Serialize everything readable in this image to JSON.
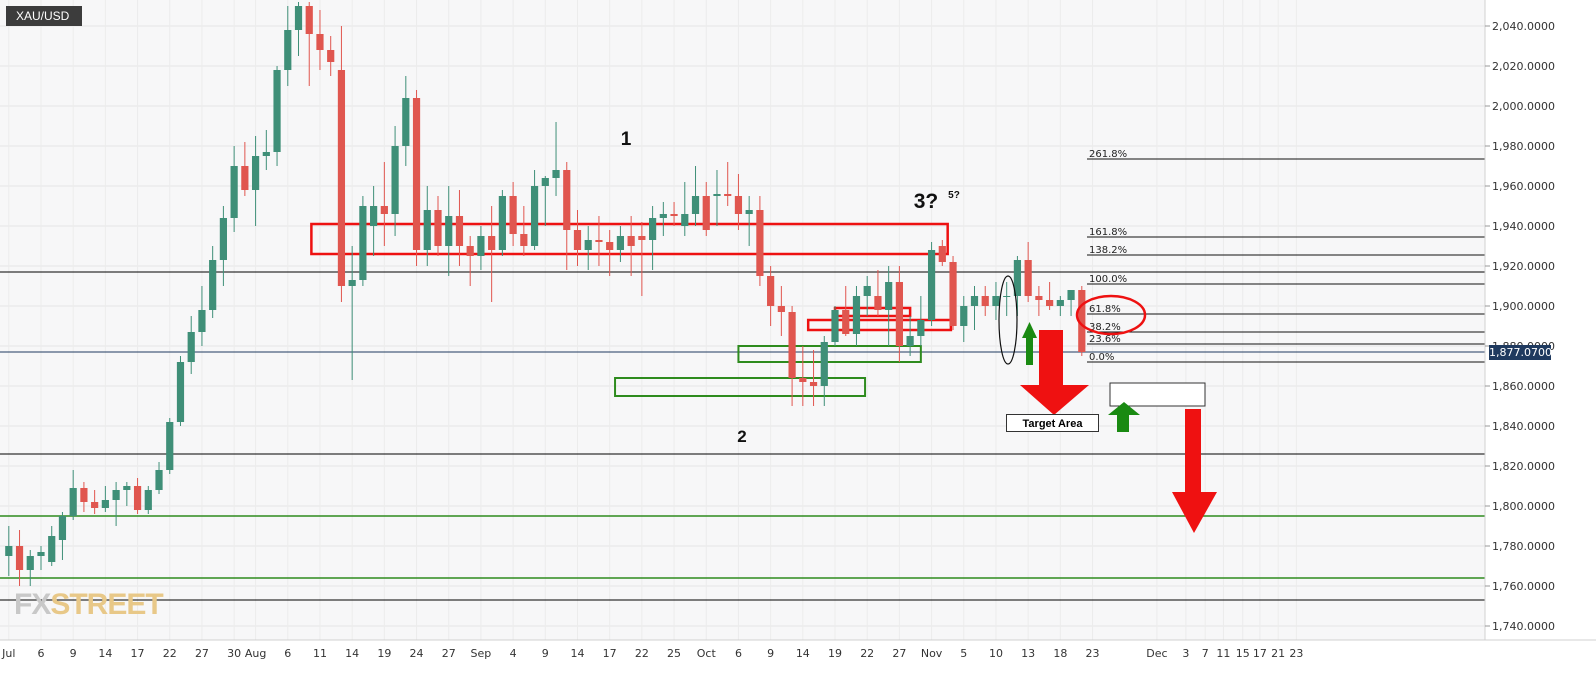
{
  "symbol": "XAU/USD",
  "current_price": "1,877.0700",
  "watermark": {
    "part1": "FX",
    "part2": "STREET"
  },
  "target_label": "Target Area",
  "wave_labels": {
    "w1": "1",
    "w2": "2",
    "w3": "3?",
    "w5": "5?"
  },
  "colors": {
    "up": "#3f8f78",
    "down": "#e0564f",
    "red_zone": "#ee1111",
    "green_zone": "#2e8b1e",
    "price_tag": "#1f3a5f"
  },
  "chart_data": {
    "type": "candlestick",
    "title": "",
    "xlabel": "",
    "ylabel": "",
    "ylim": [
      1732,
      2052
    ],
    "y_ticks": [
      "2,040.0000",
      "2,020.0000",
      "2,000.0000",
      "1,980.0000",
      "1,960.0000",
      "1,940.0000",
      "1,920.0000",
      "1,900.0000",
      "1,880.0000",
      "1,860.0000",
      "1,840.0000",
      "1,820.0000",
      "1,800.0000",
      "1,780.0000",
      "1,760.0000",
      "1,740.0000"
    ],
    "y_tick_values": [
      2040,
      2020,
      2000,
      1980,
      1960,
      1940,
      1920,
      1900,
      1880,
      1860,
      1840,
      1820,
      1800,
      1780,
      1760,
      1740
    ],
    "x_ticks": [
      {
        "label": "Jul",
        "i": 0
      },
      {
        "label": "6",
        "i": 3
      },
      {
        "label": "9",
        "i": 6
      },
      {
        "label": "14",
        "i": 9
      },
      {
        "label": "17",
        "i": 12
      },
      {
        "label": "22",
        "i": 15
      },
      {
        "label": "27",
        "i": 18
      },
      {
        "label": "30",
        "i": 21
      },
      {
        "label": "Aug",
        "i": 23
      },
      {
        "label": "6",
        "i": 26
      },
      {
        "label": "11",
        "i": 29
      },
      {
        "label": "14",
        "i": 32
      },
      {
        "label": "19",
        "i": 35
      },
      {
        "label": "24",
        "i": 38
      },
      {
        "label": "27",
        "i": 41
      },
      {
        "label": "Sep",
        "i": 44
      },
      {
        "label": "4",
        "i": 47
      },
      {
        "label": "9",
        "i": 50
      },
      {
        "label": "14",
        "i": 53
      },
      {
        "label": "17",
        "i": 56
      },
      {
        "label": "22",
        "i": 59
      },
      {
        "label": "25",
        "i": 62
      },
      {
        "label": "Oct",
        "i": 65
      },
      {
        "label": "6",
        "i": 68
      },
      {
        "label": "9",
        "i": 71
      },
      {
        "label": "14",
        "i": 74
      },
      {
        "label": "19",
        "i": 77
      },
      {
        "label": "22",
        "i": 80
      },
      {
        "label": "27",
        "i": 83
      },
      {
        "label": "Nov",
        "i": 86
      },
      {
        "label": "5",
        "i": 89
      },
      {
        "label": "10",
        "i": 92
      },
      {
        "label": "13",
        "i": 95
      },
      {
        "label": "18",
        "i": 98
      },
      {
        "label": "23",
        "i": 101
      },
      {
        "label": "Dec",
        "i": 107
      },
      {
        "label": "3",
        "i": 109.7
      },
      {
        "label": "7",
        "i": 111.5
      },
      {
        "label": "11",
        "i": 113.2
      },
      {
        "label": "15",
        "i": 115
      },
      {
        "label": "17",
        "i": 116.6
      },
      {
        "label": "21",
        "i": 118.3
      },
      {
        "label": "23",
        "i": 120
      }
    ],
    "candles": [
      {
        "o": 1775,
        "h": 1790,
        "l": 1765,
        "c": 1780
      },
      {
        "o": 1780,
        "h": 1788,
        "l": 1760,
        "c": 1768
      },
      {
        "o": 1768,
        "h": 1778,
        "l": 1760,
        "c": 1775
      },
      {
        "o": 1775,
        "h": 1780,
        "l": 1768,
        "c": 1777
      },
      {
        "o": 1772,
        "h": 1790,
        "l": 1770,
        "c": 1785
      },
      {
        "o": 1783,
        "h": 1797,
        "l": 1773,
        "c": 1795
      },
      {
        "o": 1795,
        "h": 1818,
        "l": 1793,
        "c": 1809
      },
      {
        "o": 1809,
        "h": 1812,
        "l": 1797,
        "c": 1802
      },
      {
        "o": 1802,
        "h": 1808,
        "l": 1796,
        "c": 1799
      },
      {
        "o": 1799,
        "h": 1810,
        "l": 1797,
        "c": 1803
      },
      {
        "o": 1803,
        "h": 1812,
        "l": 1790,
        "c": 1808
      },
      {
        "o": 1808,
        "h": 1812,
        "l": 1800,
        "c": 1810
      },
      {
        "o": 1810,
        "h": 1814,
        "l": 1796,
        "c": 1798
      },
      {
        "o": 1798,
        "h": 1810,
        "l": 1796,
        "c": 1808
      },
      {
        "o": 1808,
        "h": 1822,
        "l": 1806,
        "c": 1818
      },
      {
        "o": 1818,
        "h": 1844,
        "l": 1816,
        "c": 1842
      },
      {
        "o": 1842,
        "h": 1875,
        "l": 1840,
        "c": 1872
      },
      {
        "o": 1872,
        "h": 1895,
        "l": 1866,
        "c": 1887
      },
      {
        "o": 1887,
        "h": 1910,
        "l": 1880,
        "c": 1898
      },
      {
        "o": 1898,
        "h": 1930,
        "l": 1894,
        "c": 1923
      },
      {
        "o": 1923,
        "h": 1950,
        "l": 1910,
        "c": 1944
      },
      {
        "o": 1944,
        "h": 1980,
        "l": 1937,
        "c": 1970
      },
      {
        "o": 1970,
        "h": 1982,
        "l": 1955,
        "c": 1958
      },
      {
        "o": 1958,
        "h": 1985,
        "l": 1940,
        "c": 1975
      },
      {
        "o": 1975,
        "h": 1988,
        "l": 1968,
        "c": 1977
      },
      {
        "o": 1977,
        "h": 2020,
        "l": 1970,
        "c": 2018
      },
      {
        "o": 2018,
        "h": 2050,
        "l": 2010,
        "c": 2038
      },
      {
        "o": 2038,
        "h": 2052,
        "l": 2025,
        "c": 2050
      },
      {
        "o": 2050,
        "h": 2052,
        "l": 2010,
        "c": 2036
      },
      {
        "o": 2036,
        "h": 2048,
        "l": 2018,
        "c": 2028
      },
      {
        "o": 2028,
        "h": 2035,
        "l": 2015,
        "c": 2022
      },
      {
        "o": 2018,
        "h": 2040,
        "l": 1902,
        "c": 1910
      },
      {
        "o": 1910,
        "h": 1930,
        "l": 1863,
        "c": 1913
      },
      {
        "o": 1913,
        "h": 1955,
        "l": 1910,
        "c": 1950
      },
      {
        "o": 1940,
        "h": 1960,
        "l": 1925,
        "c": 1950
      },
      {
        "o": 1950,
        "h": 1972,
        "l": 1930,
        "c": 1946
      },
      {
        "o": 1946,
        "h": 1990,
        "l": 1935,
        "c": 1980
      },
      {
        "o": 1980,
        "h": 2015,
        "l": 1970,
        "c": 2004
      },
      {
        "o": 2004,
        "h": 2008,
        "l": 1920,
        "c": 1928
      },
      {
        "o": 1928,
        "h": 1960,
        "l": 1920,
        "c": 1948
      },
      {
        "o": 1948,
        "h": 1955,
        "l": 1925,
        "c": 1930
      },
      {
        "o": 1930,
        "h": 1960,
        "l": 1915,
        "c": 1945
      },
      {
        "o": 1945,
        "h": 1958,
        "l": 1920,
        "c": 1930
      },
      {
        "o": 1930,
        "h": 1935,
        "l": 1910,
        "c": 1925
      },
      {
        "o": 1925,
        "h": 1940,
        "l": 1918,
        "c": 1935
      },
      {
        "o": 1935,
        "h": 1950,
        "l": 1902,
        "c": 1928
      },
      {
        "o": 1928,
        "h": 1958,
        "l": 1925,
        "c": 1955
      },
      {
        "o": 1955,
        "h": 1962,
        "l": 1930,
        "c": 1936
      },
      {
        "o": 1936,
        "h": 1950,
        "l": 1925,
        "c": 1930
      },
      {
        "o": 1930,
        "h": 1968,
        "l": 1928,
        "c": 1960
      },
      {
        "o": 1960,
        "h": 1965,
        "l": 1940,
        "c": 1964
      },
      {
        "o": 1964,
        "h": 1992,
        "l": 1955,
        "c": 1968
      },
      {
        "o": 1968,
        "h": 1972,
        "l": 1918,
        "c": 1938
      },
      {
        "o": 1938,
        "h": 1948,
        "l": 1920,
        "c": 1928
      },
      {
        "o": 1928,
        "h": 1940,
        "l": 1918,
        "c": 1933
      },
      {
        "o": 1933,
        "h": 1945,
        "l": 1920,
        "c": 1932
      },
      {
        "o": 1932,
        "h": 1938,
        "l": 1915,
        "c": 1928
      },
      {
        "o": 1928,
        "h": 1940,
        "l": 1922,
        "c": 1935
      },
      {
        "o": 1935,
        "h": 1945,
        "l": 1915,
        "c": 1930
      },
      {
        "o": 1935,
        "h": 1942,
        "l": 1905,
        "c": 1933
      },
      {
        "o": 1933,
        "h": 1950,
        "l": 1918,
        "c": 1944
      },
      {
        "o": 1944,
        "h": 1952,
        "l": 1935,
        "c": 1946
      },
      {
        "o": 1946,
        "h": 1952,
        "l": 1940,
        "c": 1945
      },
      {
        "o": 1940,
        "h": 1962,
        "l": 1935,
        "c": 1946
      },
      {
        "o": 1946,
        "h": 1970,
        "l": 1940,
        "c": 1955
      },
      {
        "o": 1955,
        "h": 1962,
        "l": 1935,
        "c": 1938
      },
      {
        "o": 1955,
        "h": 1968,
        "l": 1940,
        "c": 1956
      },
      {
        "o": 1956,
        "h": 1972,
        "l": 1950,
        "c": 1955
      },
      {
        "o": 1955,
        "h": 1966,
        "l": 1938,
        "c": 1946
      },
      {
        "o": 1946,
        "h": 1955,
        "l": 1930,
        "c": 1948
      },
      {
        "o": 1948,
        "h": 1955,
        "l": 1910,
        "c": 1915
      },
      {
        "o": 1915,
        "h": 1920,
        "l": 1890,
        "c": 1900
      },
      {
        "o": 1900,
        "h": 1910,
        "l": 1885,
        "c": 1897
      },
      {
        "o": 1897,
        "h": 1900,
        "l": 1850,
        "c": 1864
      },
      {
        "o": 1864,
        "h": 1880,
        "l": 1850,
        "c": 1862
      },
      {
        "o": 1862,
        "h": 1878,
        "l": 1850,
        "c": 1860
      },
      {
        "o": 1860,
        "h": 1885,
        "l": 1850,
        "c": 1882
      },
      {
        "o": 1882,
        "h": 1900,
        "l": 1880,
        "c": 1898
      },
      {
        "o": 1898,
        "h": 1910,
        "l": 1885,
        "c": 1886
      },
      {
        "o": 1886,
        "h": 1910,
        "l": 1880,
        "c": 1905
      },
      {
        "o": 1905,
        "h": 1915,
        "l": 1895,
        "c": 1910
      },
      {
        "o": 1905,
        "h": 1918,
        "l": 1895,
        "c": 1898
      },
      {
        "o": 1898,
        "h": 1920,
        "l": 1880,
        "c": 1912
      },
      {
        "o": 1912,
        "h": 1920,
        "l": 1872,
        "c": 1880
      },
      {
        "o": 1880,
        "h": 1895,
        "l": 1875,
        "c": 1885
      },
      {
        "o": 1885,
        "h": 1905,
        "l": 1880,
        "c": 1893
      },
      {
        "o": 1893,
        "h": 1932,
        "l": 1890,
        "c": 1928
      },
      {
        "o": 1930,
        "h": 1933,
        "l": 1920,
        "c": 1922
      },
      {
        "o": 1922,
        "h": 1925,
        "l": 1888,
        "c": 1890
      },
      {
        "o": 1890,
        "h": 1905,
        "l": 1882,
        "c": 1900
      },
      {
        "o": 1900,
        "h": 1910,
        "l": 1888,
        "c": 1905
      },
      {
        "o": 1905,
        "h": 1910,
        "l": 1895,
        "c": 1900
      },
      {
        "o": 1900,
        "h": 1912,
        "l": 1893,
        "c": 1905
      },
      {
        "o": 1905,
        "h": 1912,
        "l": 1895,
        "c": 1905
      },
      {
        "o": 1905,
        "h": 1925,
        "l": 1895,
        "c": 1923
      },
      {
        "o": 1923,
        "h": 1932,
        "l": 1902,
        "c": 1905
      },
      {
        "o": 1905,
        "h": 1910,
        "l": 1895,
        "c": 1903
      },
      {
        "o": 1903,
        "h": 1912,
        "l": 1898,
        "c": 1900
      },
      {
        "o": 1900,
        "h": 1905,
        "l": 1895,
        "c": 1903
      },
      {
        "o": 1903,
        "h": 1908,
        "l": 1895,
        "c": 1908
      },
      {
        "o": 1908,
        "h": 1910,
        "l": 1875,
        "c": 1877
      }
    ],
    "horizontal_lines": [
      {
        "price": 1917,
        "color": "#000000"
      },
      {
        "price": 1826,
        "color": "#000000"
      },
      {
        "price": 1753,
        "color": "#000000"
      },
      {
        "price": 1877,
        "color": "#1f3a5f"
      },
      {
        "price": 1795,
        "color": "#2e8b1e"
      },
      {
        "price": 1764,
        "color": "#2e8b1e"
      }
    ],
    "fib_levels": [
      {
        "label": "261.8%",
        "price": 1973.5
      },
      {
        "label": "161.8%",
        "price": 1934.5
      },
      {
        "label": "138.2%",
        "price": 1925.5
      },
      {
        "label": "100.0%",
        "price": 1911
      },
      {
        "label": "61.8%",
        "price": 1896
      },
      {
        "label": "38.2%",
        "price": 1887
      },
      {
        "label": "23.6%",
        "price": 1881
      },
      {
        "label": "0.0%",
        "price": 1872
      }
    ],
    "red_zones": [
      {
        "i0": 28.2,
        "i1": 87.5,
        "p0": 1941,
        "p1": 1926
      },
      {
        "i0": 77,
        "i1": 84,
        "p0": 1899,
        "p1": 1895
      },
      {
        "i0": 74.5,
        "i1": 87.8,
        "p0": 1893,
        "p1": 1888
      }
    ],
    "green_zones": [
      {
        "i0": 56.5,
        "i1": 79.8,
        "p0": 1864,
        "p1": 1855
      },
      {
        "i0": 68,
        "i1": 85,
        "p0": 1880,
        "p1": 1872
      }
    ],
    "legend": ""
  }
}
